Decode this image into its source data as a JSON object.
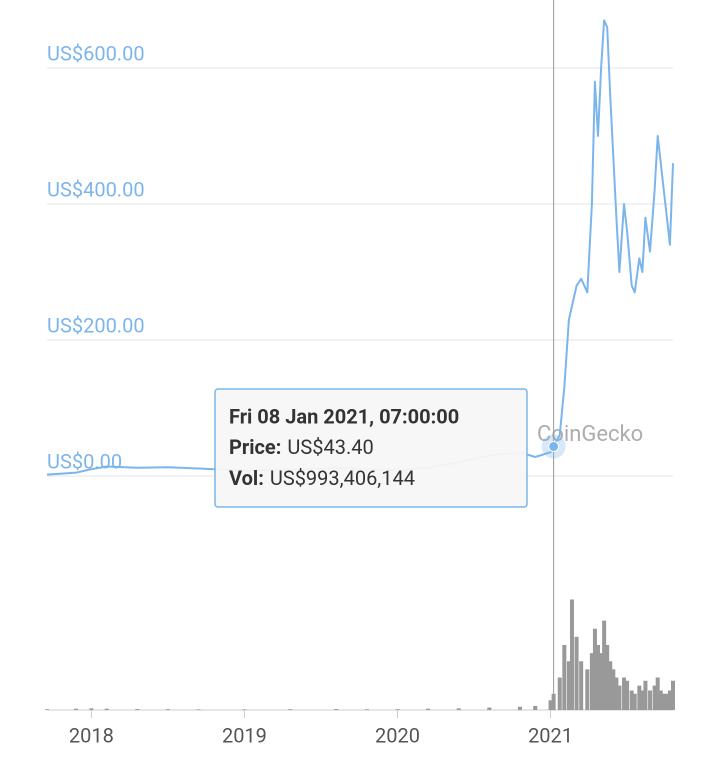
{
  "chart_data": {
    "type": "line",
    "x": [
      2017.71,
      2017.9,
      2018.0,
      2018.1,
      2018.3,
      2018.5,
      2018.7,
      2019.0,
      2019.3,
      2019.6,
      2019.8,
      2020.0,
      2020.2,
      2020.4,
      2020.6,
      2020.8,
      2020.9,
      2021.0,
      2021.02,
      2021.06,
      2021.09,
      2021.12,
      2021.14,
      2021.17,
      2021.2,
      2021.24,
      2021.27,
      2021.29,
      2021.31,
      2021.33,
      2021.35,
      2021.37,
      2021.39,
      2021.41,
      2021.43,
      2021.45,
      2021.48,
      2021.5,
      2021.53,
      2021.55,
      2021.58,
      2021.6,
      2021.62,
      2021.65,
      2021.68,
      2021.7,
      2021.72,
      2021.74,
      2021.76,
      2021.78,
      2021.8
    ],
    "series": [
      {
        "color": "#7cb5ec",
        "values": [
          2,
          5,
          10,
          14,
          12,
          13,
          11,
          8,
          9,
          12,
          10,
          9,
          12,
          20,
          30,
          35,
          28,
          35,
          43.4,
          60,
          130,
          230,
          250,
          280,
          290,
          270,
          400,
          580,
          500,
          600,
          670,
          660,
          560,
          470,
          380,
          300,
          400,
          360,
          280,
          270,
          320,
          300,
          380,
          330,
          420,
          500,
          460,
          420,
          380,
          340,
          460
        ]
      }
    ],
    "volume": {
      "color": "#999999",
      "values": [
        50000000,
        80000000,
        100000000,
        80000000,
        60000000,
        50000000,
        40000000,
        40000000,
        50000000,
        60000000,
        50000000,
        50000000,
        80000000,
        100000000,
        150000000,
        200000000,
        250000000,
        600000000,
        993406144,
        2000000000,
        4000000000,
        3000000000,
        6800000000,
        4500000000,
        3000000000,
        2500000000,
        3500000000,
        5000000000,
        4000000000,
        3500000000,
        5500000000,
        4000000000,
        3000000000,
        2500000000,
        2000000000,
        1500000000,
        2000000000,
        1800000000,
        1200000000,
        1000000000,
        1500000000,
        1200000000,
        1800000000,
        1200000000,
        1500000000,
        2000000000,
        1200000000,
        1000000000,
        1000000000,
        1200000000,
        1800000000
      ]
    },
    "vlim": [
      0,
      12000000000
    ],
    "xlim": [
      2017.71,
      2021.8
    ],
    "xticks": [
      2018,
      2019,
      2020,
      2021
    ],
    "ylim": [
      0,
      700
    ],
    "yticks": [
      {
        "value": 0,
        "label": "US$0.00"
      },
      {
        "value": 200,
        "label": "US$200.00"
      },
      {
        "value": 400,
        "label": "US$400.00"
      },
      {
        "value": 600,
        "label": "US$600.00"
      }
    ],
    "grid": true,
    "watermark": "CoinGecko",
    "tooltip": {
      "x": 2021.02,
      "y": 43.4,
      "date": "Fri 08 Jan 2021, 07:00:00",
      "price_label": "Price:",
      "price": "US$43.40",
      "vol_label": "Vol:",
      "vol": "US$993,406,144"
    }
  }
}
